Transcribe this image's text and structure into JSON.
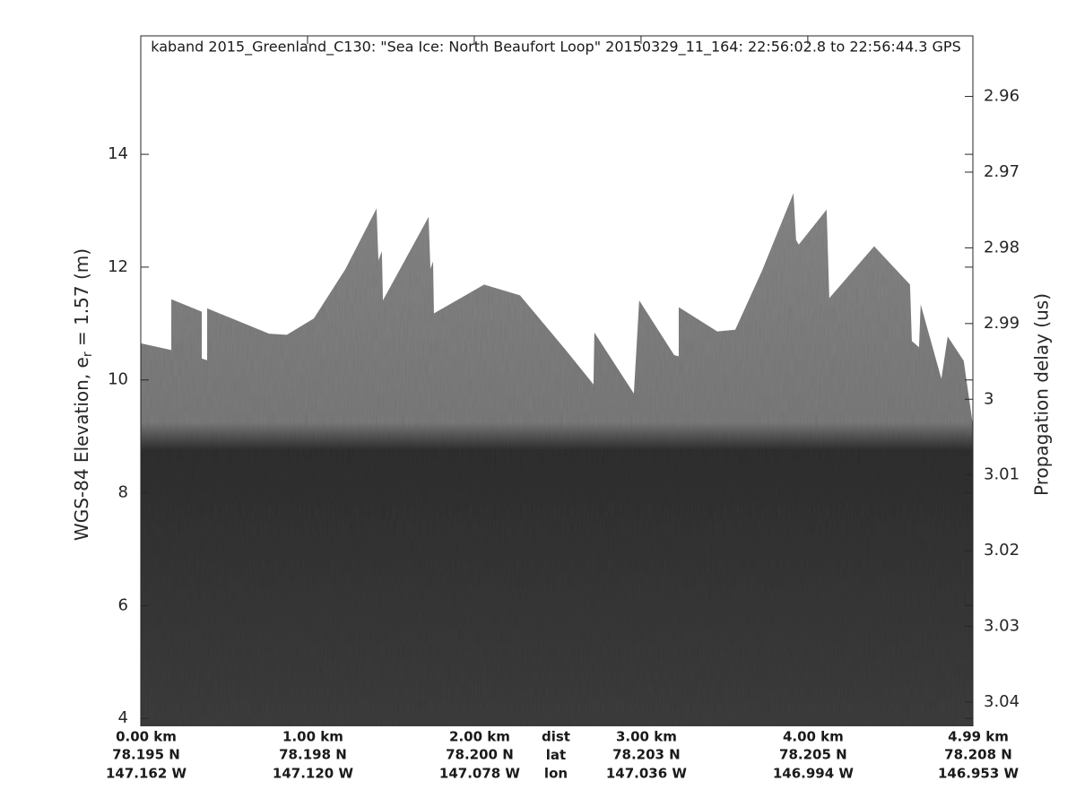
{
  "chart_data": {
    "type": "echogram",
    "title": "kaband 2015_Greenland_C130: \"Sea Ice: North Beaufort Loop\"  20150329_11_164: 22:56:02.8 to 22:56:44.3 GPS",
    "ylabel": "WGS-84 Elevation, e",
    "ylabel_subscript": "r",
    "ylabel_rest": " = 1.57 (m)",
    "y2label": "Propagation delay (us)",
    "xlim": [
      0,
      4.99
    ],
    "xticks": [
      {
        "value": 0,
        "label": "0.00 km"
      },
      {
        "value": 1,
        "label": "1.00 km"
      },
      {
        "value": 2,
        "label": "2.00 km"
      },
      {
        "value": 3,
        "label": "3.00 km"
      },
      {
        "value": 4,
        "label": "4.00 km"
      },
      {
        "value": 4.99,
        "label": "4.99 km"
      }
    ],
    "lat_labels": [
      "78.195 N",
      "78.198 N",
      "78.200 N",
      "78.203 N",
      "78.205 N",
      "78.208 N"
    ],
    "lon_labels": [
      "147.162 W",
      "147.120 W",
      "147.078 W",
      "147.036 W",
      "146.994 W",
      "146.953 W"
    ],
    "row_names": [
      "dist",
      "lat",
      "lon"
    ],
    "ylim": [
      3.86,
      16.1
    ],
    "yticks": [
      4,
      6,
      8,
      10,
      12,
      14
    ],
    "y2lim": [
      2.952,
      3.0432
    ],
    "y2_reversed": true,
    "y2ticks": [
      2.96,
      2.97,
      2.98,
      2.99,
      3,
      3.01,
      3.02,
      3.03,
      3.04
    ],
    "surface": {
      "name": "surface",
      "color": "#858585",
      "x": [
        0,
        0.183,
        0.183,
        0.366,
        0.366,
        0.398,
        0.398,
        0.769,
        0.876,
        1.038,
        1.226,
        1.414,
        1.425,
        1.446,
        1.452,
        1.726,
        1.737,
        1.753,
        1.758,
        2.059,
        2.274,
        2.543,
        2.715,
        2.72,
        2.957,
        2.989,
        3.199,
        3.226,
        3.226,
        3.457,
        3.565,
        3.726,
        3.914,
        3.93,
        3.946,
        4.113,
        4.129,
        4.398,
        4.613,
        4.624,
        4.667,
        4.677,
        4.801,
        4.839,
        4.935,
        4.989
      ],
      "values": [
        10.65,
        10.53,
        11.43,
        11.21,
        10.38,
        10.35,
        11.27,
        10.82,
        10.8,
        11.09,
        11.96,
        13.04,
        12.12,
        12.28,
        11.41,
        12.89,
        11.97,
        12.1,
        11.18,
        11.69,
        11.5,
        10.55,
        9.92,
        10.84,
        9.76,
        11.41,
        10.44,
        10.42,
        11.29,
        10.86,
        10.89,
        11.94,
        13.31,
        12.48,
        12.4,
        13.02,
        11.45,
        12.37,
        11.69,
        10.69,
        10.58,
        11.34,
        10.02,
        10.77,
        10.34,
        9.22
      ]
    },
    "bed_color": "#333333"
  }
}
